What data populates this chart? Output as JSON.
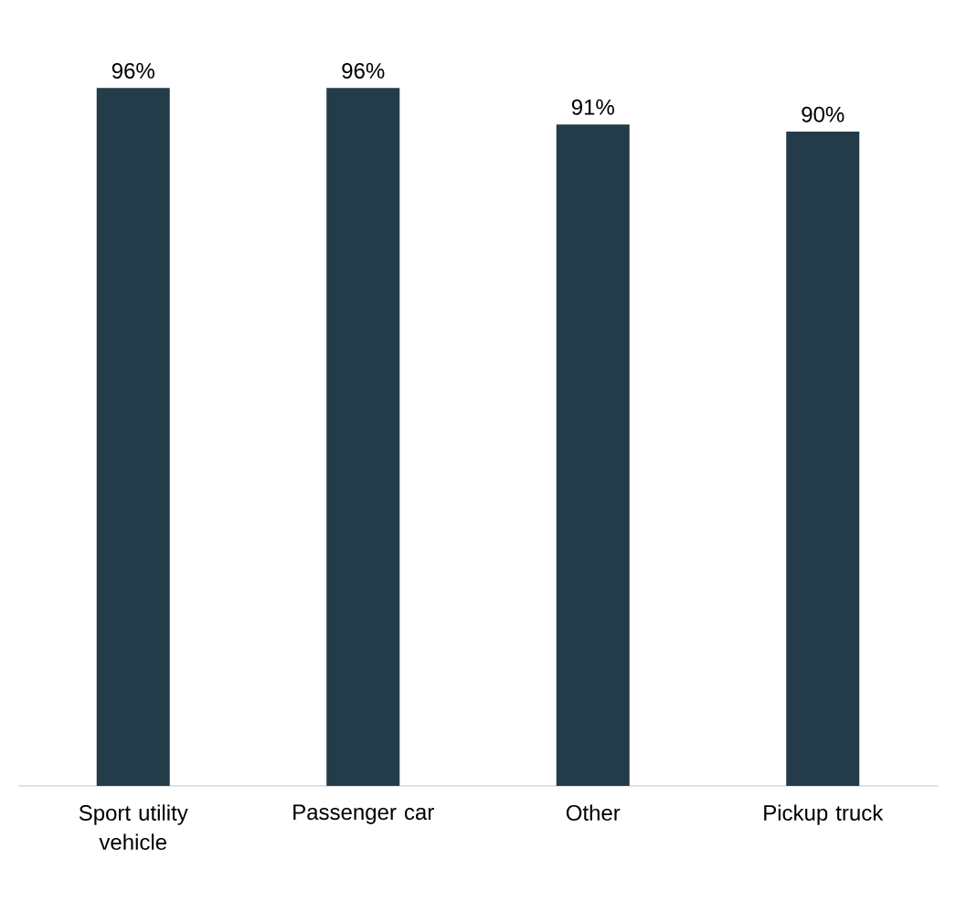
{
  "chart_data": {
    "type": "bar",
    "categories": [
      "Sport utility vehicle",
      "Passenger car",
      "Other",
      "Pickup truck"
    ],
    "values": [
      96,
      96,
      91,
      90
    ],
    "value_labels": [
      "96%",
      "96%",
      "91%",
      "90%"
    ],
    "color": "#243b4a"
  }
}
